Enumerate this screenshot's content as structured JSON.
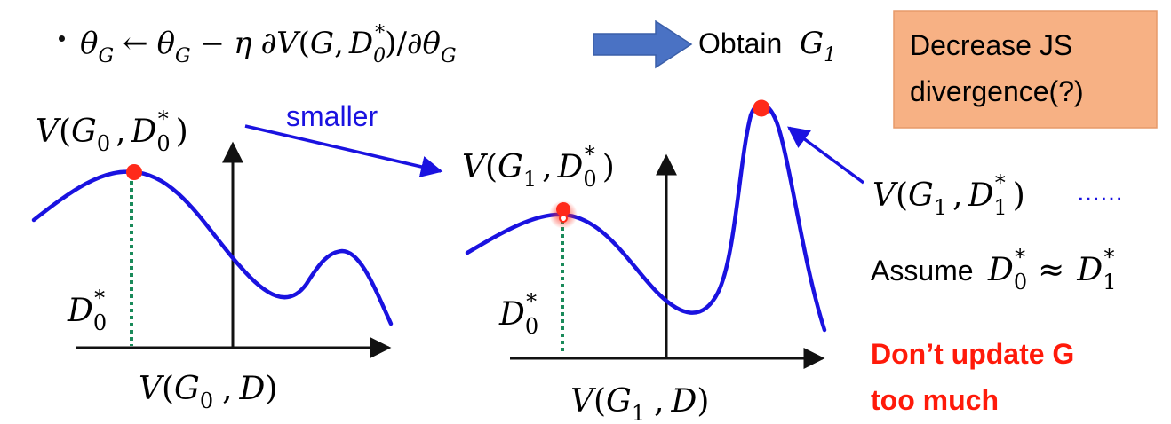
{
  "header": {
    "update_rule": {
      "theta": "θ",
      "sub_g": "G",
      "arrow": "←",
      "minus": "−",
      "eta": "η",
      "partial": "∂",
      "fn": "V",
      "open": "(",
      "g": "G",
      "comma": ",",
      "d": "D",
      "d_sub": "0",
      "star": "*",
      "close": ")",
      "slash": "/"
    },
    "obtain_label": "Obtain",
    "obtain_g": "G",
    "obtain_sub": "1"
  },
  "callout": {
    "line1": "Decrease JS",
    "line2": "divergence(?)"
  },
  "left_plot": {
    "top_label": {
      "fn": "V",
      "g": "G",
      "g_sub": "0",
      "d": "D",
      "d_sub": "0",
      "star": "*"
    },
    "d_label": {
      "d": "D",
      "sub": "0",
      "star": "*"
    },
    "axis_label": {
      "fn": "V",
      "g": "G",
      "g_sub": "0",
      "d": "D"
    }
  },
  "smaller_label": "smaller",
  "right_plot": {
    "top_label": {
      "fn": "V",
      "g": "G",
      "g_sub": "1",
      "d": "D",
      "d_sub": "0",
      "star": "*"
    },
    "peak_label": {
      "fn": "V",
      "g": "G",
      "g_sub": "1",
      "d": "D",
      "d_sub": "1",
      "star": "*"
    },
    "ellipsis": "……",
    "d_label": {
      "d": "D",
      "sub": "0",
      "star": "*"
    },
    "axis_label": {
      "fn": "V",
      "g": "G",
      "g_sub": "1",
      "d": "D"
    }
  },
  "assume": {
    "word": "Assume",
    "lhs_d": "D",
    "lhs_sub": "0",
    "approx": "≈",
    "rhs_d": "D",
    "rhs_sub": "1",
    "star": "*"
  },
  "warning": {
    "line1": "Don’t update G",
    "line2": "too much"
  },
  "colors": {
    "curve": "#1a12e0",
    "marker": "#ff2a1a",
    "dotted": "#1a8a5a",
    "callout_bg": "#f7b184",
    "warning": "#ff1a0a",
    "label_blue": "#1a12e0"
  }
}
